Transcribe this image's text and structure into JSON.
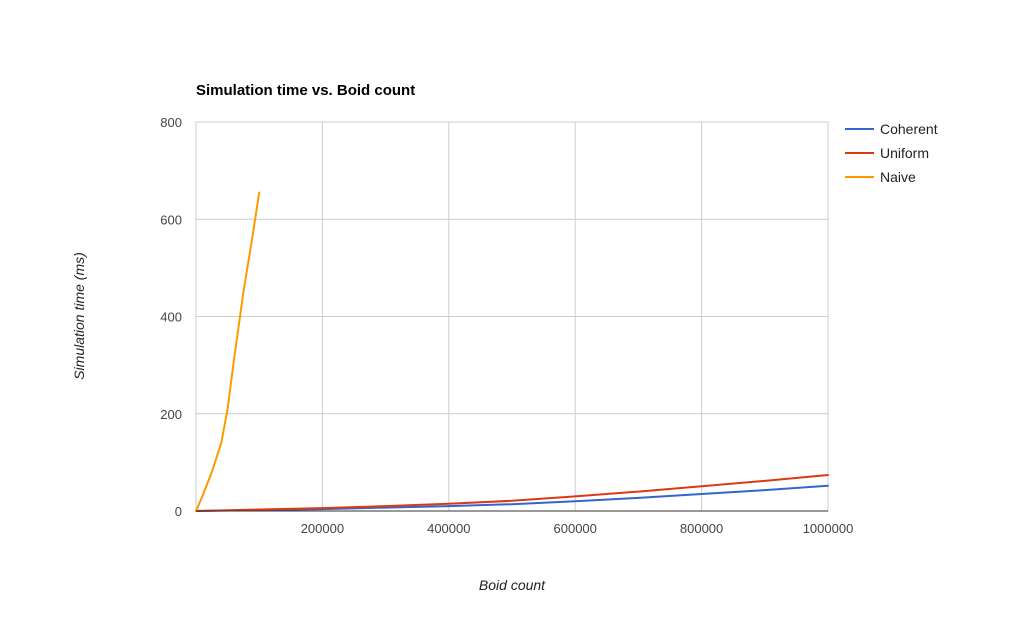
{
  "chart_data": {
    "type": "line",
    "title": "Simulation time vs. Boid count",
    "xlabel": "Boid count",
    "ylabel": "Simulation time (ms)",
    "xlim": [
      0,
      1000000
    ],
    "ylim": [
      0,
      800
    ],
    "x_ticks": [
      200000,
      400000,
      600000,
      800000,
      1000000
    ],
    "y_ticks": [
      0,
      200,
      400,
      600,
      800
    ],
    "x_tick_labels": [
      "200000",
      "400000",
      "600000",
      "800000",
      "1000000"
    ],
    "y_tick_labels": [
      "0",
      "200",
      "400",
      "600",
      "800"
    ],
    "grid": true,
    "legend_position": "right",
    "series": [
      {
        "name": "Coherent",
        "color": "#3366cc",
        "x": [
          0,
          100000,
          200000,
          300000,
          400000,
          500000,
          600000,
          700000,
          800000,
          900000,
          1000000
        ],
        "y": [
          0,
          2,
          4,
          7,
          10,
          14,
          20,
          27,
          35,
          43,
          52
        ]
      },
      {
        "name": "Uniform",
        "color": "#dc3912",
        "x": [
          0,
          100000,
          200000,
          300000,
          400000,
          500000,
          600000,
          700000,
          800000,
          900000,
          1000000
        ],
        "y": [
          0,
          3,
          6,
          10,
          15,
          21,
          30,
          40,
          51,
          62,
          74
        ]
      },
      {
        "name": "Naive",
        "color": "#ff9900",
        "x": [
          0,
          10000,
          25000,
          40000,
          50000,
          60000,
          75000,
          90000,
          100000
        ],
        "y": [
          0,
          30,
          80,
          140,
          210,
          310,
          450,
          570,
          655
        ]
      }
    ]
  }
}
